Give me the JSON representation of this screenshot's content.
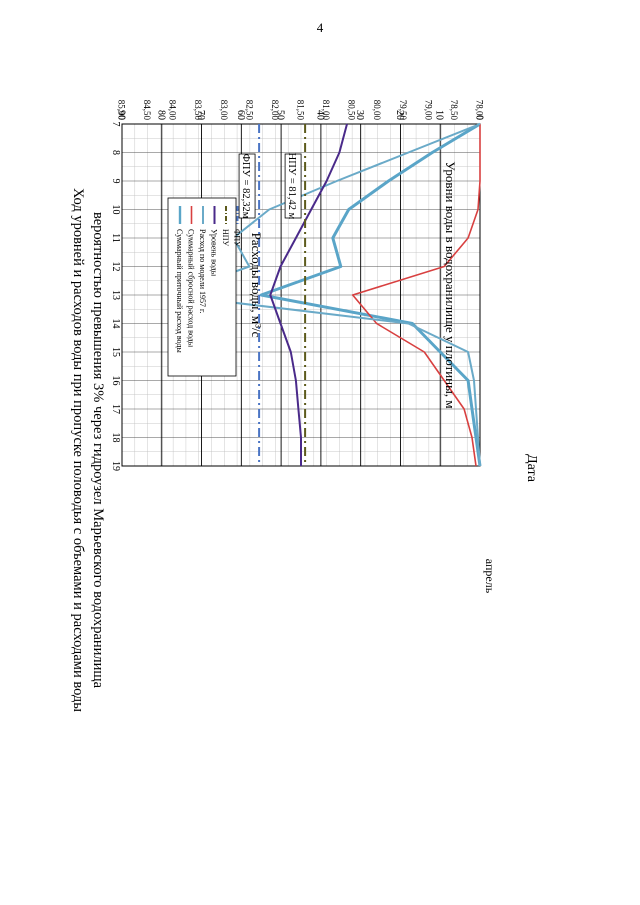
{
  "page_number": "4",
  "chart_data": {
    "type": "line",
    "title_line1": "Ход уровней и расходов воды при пропуске половодья с объемами и расходами воды",
    "title_line2": "вероятностью превышения 3% через гидроузел Марьевского водохранилища",
    "xlabel": "Дата",
    "x_month_label": "апрель",
    "categories": [
      "7",
      "8",
      "9",
      "10",
      "11",
      "12",
      "13",
      "14",
      "15",
      "16",
      "17",
      "18",
      "19"
    ],
    "ylabel_left": "Расходы воды, м³/с",
    "ylim_left": [
      0,
      90
    ],
    "yticks_left": [
      "0",
      "10",
      "20",
      "30",
      "40",
      "50",
      "60",
      "70",
      "80",
      "90"
    ],
    "ylabel_right": "Уровни воды в водохранилище у плотины, м",
    "ylim_right": [
      78,
      85
    ],
    "yticks_right": [
      "78,00",
      "78,50",
      "79,00",
      "79,50",
      "80,00",
      "80,50",
      "81,00",
      "81,50",
      "82,00",
      "82,50",
      "83,00",
      "83,50",
      "84,00",
      "84,50",
      "85,00"
    ],
    "grid": true,
    "legend_placement": "top-left",
    "series": [
      {
        "name": "Суммарный  приточный расход воды",
        "axis": "left",
        "color": "#5aa5c8",
        "width": 3.0,
        "values": [
          0,
          12,
          23,
          33,
          37,
          35,
          55,
          17,
          10,
          3,
          2,
          1,
          0
        ]
      },
      {
        "name": "Суммарный  сбросной расход воды",
        "axis": "left",
        "color": "#d84040",
        "width": 1.6,
        "values": [
          0,
          0,
          0,
          0.5,
          3,
          9,
          32,
          26,
          14,
          9,
          4,
          2,
          1
        ]
      },
      {
        "name": "Расход по модели 1957 г.",
        "axis": "left",
        "color": "#6aaac8",
        "width": 2.0,
        "values": [
          0,
          18,
          36,
          53,
          62,
          58,
          78,
          18,
          3,
          1.5,
          1,
          0.5,
          0
        ]
      },
      {
        "name": "Уровень воды",
        "axis": "right",
        "color": "#4a2a8a",
        "width": 2.0,
        "values": [
          80.6,
          80.75,
          81.0,
          81.3,
          81.6,
          81.9,
          82.1,
          81.9,
          81.7,
          81.6,
          81.55,
          81.5,
          81.5
        ]
      },
      {
        "name": "НПУ",
        "axis": "right",
        "color": "#5c5a1c",
        "width": 2.0,
        "dash": "9,4,2,4",
        "values": [
          81.42,
          81.42,
          81.42,
          81.42,
          81.42,
          81.42,
          81.42,
          81.42,
          81.42,
          81.42,
          81.42,
          81.42,
          81.42
        ]
      },
      {
        "name": "ФПУ",
        "axis": "right",
        "color": "#4a74c4",
        "width": 2.0,
        "dash": "9,4,2,4",
        "values": [
          82.32,
          82.32,
          82.32,
          82.32,
          82.32,
          82.32,
          82.32,
          82.32,
          82.32,
          82.32,
          82.32,
          82.32,
          82.32
        ]
      }
    ],
    "annotations": {
      "fpu": "ФПУ = 82,32м",
      "npu": "НПУ = 81,42 м"
    }
  }
}
